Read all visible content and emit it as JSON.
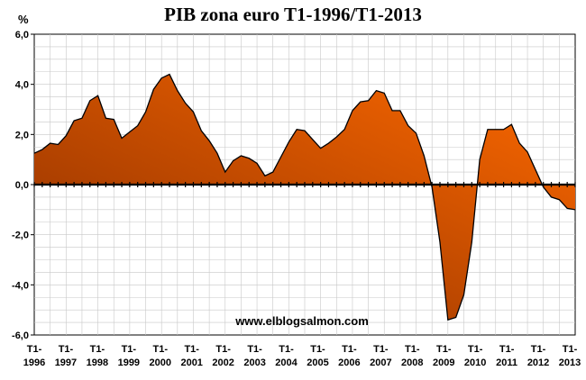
{
  "chart_data": {
    "type": "area",
    "title": "PIB zona euro T1-1996/T1-2013",
    "ylabel": "%",
    "xlabel": "",
    "ylim": [
      -6,
      6
    ],
    "yticks": [
      "6,0",
      "4,0",
      "2,0",
      "0,0",
      "-2,0",
      "-4,0",
      "-6,0"
    ],
    "ytick_values": [
      6,
      4,
      2,
      0,
      -2,
      -4,
      -6
    ],
    "xtick_top": "T1-",
    "xtick_years": [
      "1996",
      "1997",
      "1998",
      "1999",
      "2000",
      "2001",
      "2002",
      "2003",
      "2004",
      "2005",
      "2006",
      "2007",
      "2008",
      "2009",
      "2010",
      "2011",
      "2012",
      "2013"
    ],
    "annotation": "www.elblogsalmon.com",
    "grid": true,
    "colors": {
      "fill_top": "#ff6a00",
      "fill_bottom": "#8a2e00",
      "line": "#000000",
      "grid": "#c8c8c8"
    },
    "series": [
      {
        "values": [
          1.25,
          1.4,
          1.65,
          1.6,
          1.95,
          2.55,
          2.65,
          3.35,
          3.55,
          2.65,
          2.6,
          1.85,
          2.1,
          2.35,
          2.9,
          3.8,
          4.25,
          4.4,
          3.75,
          3.25,
          2.9,
          2.15,
          1.75,
          1.25,
          0.5,
          0.95,
          1.15,
          1.05,
          0.85,
          0.35,
          0.5,
          1.1,
          1.7,
          2.2,
          2.15,
          1.8,
          1.45,
          1.65,
          1.9,
          2.2,
          2.95,
          3.3,
          3.35,
          3.75,
          3.65,
          2.95,
          2.95,
          2.35,
          2.05,
          1.15,
          -0.1,
          -2.3,
          -5.4,
          -5.3,
          -4.4,
          -2.3,
          1.0,
          2.2,
          2.2,
          2.2,
          2.4,
          1.65,
          1.3,
          0.6,
          -0.1,
          -0.5,
          -0.6,
          -0.95,
          -1.0
        ]
      }
    ]
  }
}
